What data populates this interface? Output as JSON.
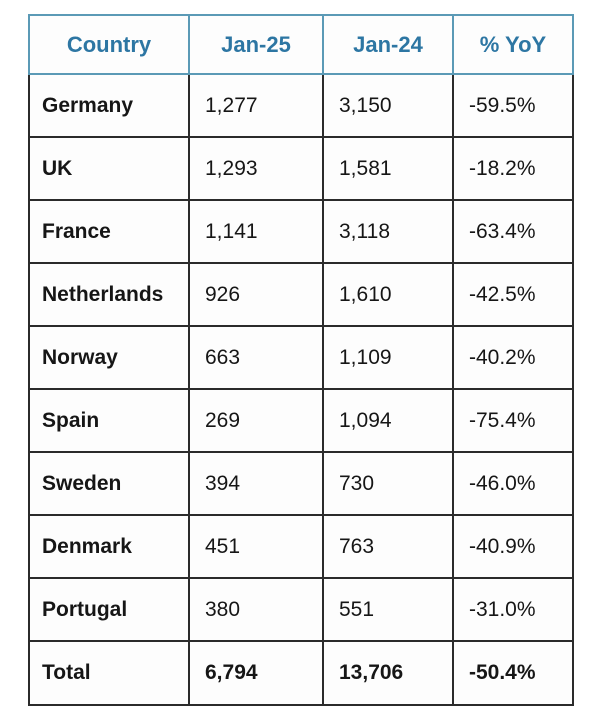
{
  "table": {
    "columns": [
      "Country",
      "Jan-25",
      "Jan-24",
      "% YoY"
    ],
    "rows": [
      {
        "country": "Germany",
        "jan25": "1,277",
        "jan24": "3,150",
        "yoy": "-59.5%"
      },
      {
        "country": "UK",
        "jan25": "1,293",
        "jan24": "1,581",
        "yoy": "-18.2%"
      },
      {
        "country": "France",
        "jan25": "1,141",
        "jan24": "3,118",
        "yoy": "-63.4%"
      },
      {
        "country": "Netherlands",
        "jan25": "926",
        "jan24": "1,610",
        "yoy": "-42.5%"
      },
      {
        "country": "Norway",
        "jan25": "663",
        "jan24": "1,109",
        "yoy": "-40.2%"
      },
      {
        "country": "Spain",
        "jan25": "269",
        "jan24": "1,094",
        "yoy": "-75.4%"
      },
      {
        "country": "Sweden",
        "jan25": "394",
        "jan24": "730",
        "yoy": "-46.0%"
      },
      {
        "country": "Denmark",
        "jan25": "451",
        "jan24": "763",
        "yoy": "-40.9%"
      },
      {
        "country": "Portugal",
        "jan25": "380",
        "jan24": "551",
        "yoy": "-31.0%"
      }
    ],
    "total": {
      "country": "Total",
      "jan25": "6,794",
      "jan24": "13,706",
      "yoy": "-50.4%"
    }
  },
  "colors": {
    "header_text": "#2d76a3",
    "header_border": "#5b9ab6",
    "cell_border": "#2b2b2b",
    "body_text": "#161616",
    "background": "#ffffff"
  },
  "chart_data": {
    "type": "table",
    "title": "",
    "categories": [
      "Germany",
      "UK",
      "France",
      "Netherlands",
      "Norway",
      "Spain",
      "Sweden",
      "Denmark",
      "Portugal",
      "Total"
    ],
    "series": [
      {
        "name": "Jan-25",
        "values": [
          1277,
          1293,
          1141,
          926,
          663,
          269,
          394,
          451,
          380,
          6794
        ]
      },
      {
        "name": "Jan-24",
        "values": [
          3150,
          1581,
          3118,
          1610,
          1109,
          1094,
          730,
          763,
          551,
          13706
        ]
      },
      {
        "name": "% YoY",
        "values": [
          -59.5,
          -18.2,
          -63.4,
          -42.5,
          -40.2,
          -75.4,
          -46.0,
          -40.9,
          -31.0,
          -50.4
        ]
      }
    ]
  }
}
